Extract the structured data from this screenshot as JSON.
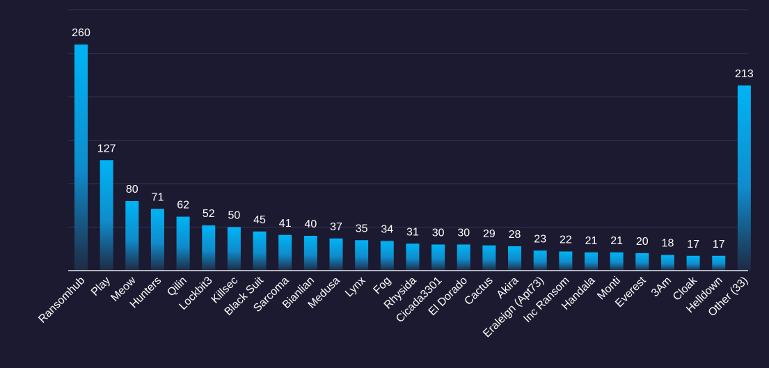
{
  "chart_data": {
    "type": "bar",
    "categories": [
      "Ransomhub",
      "Play",
      "Meow",
      "Hunters",
      "Qilin",
      "Lockbit3",
      "Killsec",
      "Black Suit",
      "Sarcoma",
      "Bianlian",
      "Medusa",
      "Lynx",
      "Fog",
      "Rhysida",
      "Cicada3301",
      "El Dorado",
      "Cactus",
      "Akira",
      "Eraleign (Apt73)",
      "Inc Ransom",
      "Handala",
      "Monti",
      "Everest",
      "3Am",
      "Cloak",
      "Helldown",
      "Other (33)"
    ],
    "values": [
      260,
      127,
      80,
      71,
      62,
      52,
      50,
      45,
      41,
      40,
      37,
      35,
      34,
      31,
      30,
      30,
      29,
      28,
      23,
      22,
      21,
      21,
      20,
      18,
      17,
      17,
      213
    ],
    "title": "",
    "xlabel": "",
    "ylabel": "",
    "ylim": [
      0,
      300
    ],
    "grid": true,
    "legend": "none",
    "colors": {
      "bar_top": "#00b4f5",
      "bar_bottom": "#1e2a44",
      "background": "#1b1a30",
      "grid": "#34344e",
      "axis": "#e6e6ee",
      "text": "#ffffff"
    }
  }
}
